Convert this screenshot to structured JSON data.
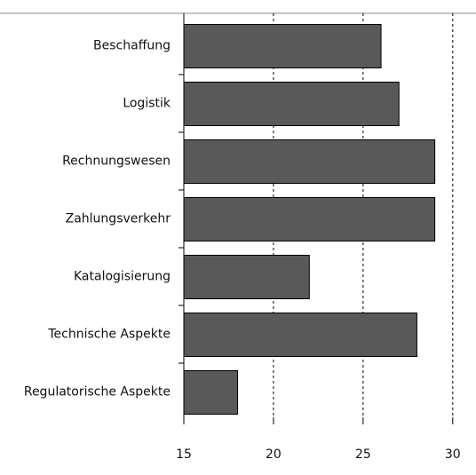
{
  "chart_data": {
    "type": "barh",
    "categories": [
      "Beschaffung",
      "Logistik",
      "Rechnungswesen",
      "Zahlungsverkehr",
      "Katalogisierung",
      "Technische Aspekte",
      "Regulatorische Aspekte"
    ],
    "values": [
      26,
      27,
      29,
      29,
      22,
      28,
      18
    ],
    "color": "#595959",
    "xlim": [
      15,
      31
    ],
    "xticks": [
      15,
      20,
      25,
      30
    ],
    "grid": true
  }
}
